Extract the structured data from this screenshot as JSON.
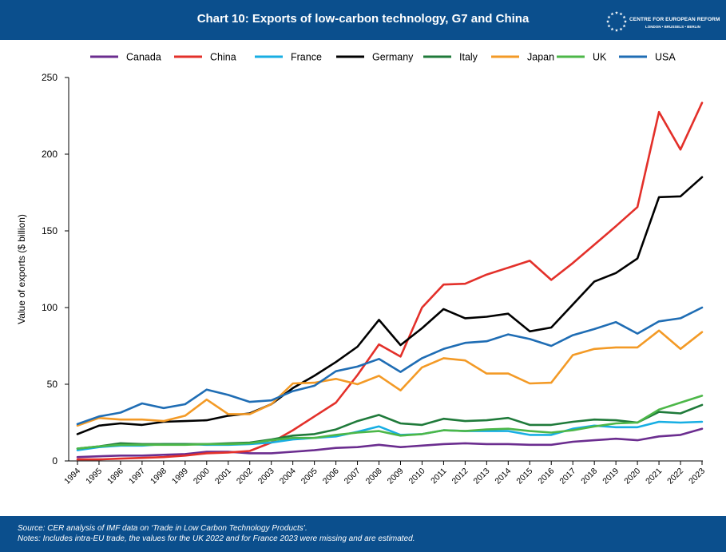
{
  "header": {
    "title": "Chart 10: Exports of low-carbon technology, G7 and China",
    "logo_name": "CENTRE FOR EUROPEAN REFORM",
    "logo_cities": "LONDON • BRUSSELS • BERLIN"
  },
  "footer": {
    "source": "Source: CER analysis of IMF data on ‘Trade in Low Carbon Technology Products’.",
    "notes": "Notes: Includes intra-EU trade, the values for the UK 2022 and for France 2023 were missing and are estimated."
  },
  "chart_data": {
    "type": "line",
    "title": "Chart 10: Exports of low-carbon technology, G7 and China",
    "xlabel": "",
    "ylabel": "Value of exports ($ billion)",
    "ylim": [
      0,
      250
    ],
    "yticks": [
      0,
      50,
      100,
      150,
      200,
      250
    ],
    "grid": false,
    "legend_position": "top",
    "x": [
      "1994",
      "1995",
      "1996",
      "1997",
      "1998",
      "1999",
      "2000",
      "2001",
      "2002",
      "2003",
      "2004",
      "2005",
      "2006",
      "2007",
      "2008",
      "2009",
      "2010",
      "2011",
      "2012",
      "2013",
      "2014",
      "2015",
      "2016",
      "2017",
      "2018",
      "2019",
      "2020",
      "2021",
      "2022",
      "2023"
    ],
    "series": [
      {
        "name": "Canada",
        "color": "#6b2d8f",
        "values": [
          2.5,
          3,
          3.5,
          3.5,
          4,
          4.5,
          6,
          6,
          5,
          5,
          6,
          7,
          8.5,
          9,
          10.5,
          9,
          10,
          11,
          11.5,
          11,
          11,
          10.5,
          10.5,
          12.5,
          13.5,
          14.5,
          13.5,
          16,
          17,
          21
        ]
      },
      {
        "name": "China",
        "color": "#e3302a",
        "values": [
          1,
          1,
          1.5,
          2,
          2.5,
          3.5,
          5,
          5.5,
          6.5,
          12,
          20,
          29,
          38,
          56,
          76,
          68,
          100,
          115,
          115.5,
          121.5,
          126,
          130.5,
          118,
          129,
          141,
          153,
          165.5,
          227.5,
          203,
          233.5
        ]
      },
      {
        "name": "France",
        "color": "#17aee3",
        "values": [
          7,
          9,
          10,
          10,
          11,
          11,
          10.5,
          10.5,
          11,
          12,
          14,
          15,
          16,
          19,
          22.5,
          17,
          17.5,
          20,
          19.5,
          19.5,
          19.5,
          17,
          17,
          21,
          23,
          22,
          22,
          25.5,
          25,
          25.5
        ]
      },
      {
        "name": "Germany",
        "color": "#000000",
        "values": [
          17.5,
          23,
          24.5,
          23.5,
          25.5,
          26,
          26.5,
          29.5,
          31,
          37,
          47.5,
          55.5,
          64.5,
          74.5,
          92,
          75.5,
          86.5,
          99,
          93,
          94,
          96,
          84.5,
          87,
          102,
          117,
          122.5,
          132,
          172,
          172.5,
          185
        ]
      },
      {
        "name": "Italy",
        "color": "#1f7a3a",
        "values": [
          8,
          9.5,
          11.5,
          11,
          11,
          11,
          11,
          11.5,
          12,
          14,
          16.5,
          17.5,
          20.5,
          26,
          30,
          24.5,
          23.5,
          27.5,
          26,
          26.5,
          28,
          23.5,
          23.5,
          25.5,
          27,
          26.5,
          25,
          32,
          31,
          36.5
        ]
      },
      {
        "name": "Japan",
        "color": "#f39a26",
        "values": [
          23,
          28,
          27,
          27,
          26,
          29.5,
          40,
          30.5,
          30.5,
          37,
          50.5,
          51,
          53.5,
          50,
          55.5,
          46,
          61,
          67,
          65.5,
          57,
          57,
          50.5,
          51,
          69,
          73,
          74,
          74,
          85,
          73,
          84
        ]
      },
      {
        "name": "UK",
        "color": "#4cb748",
        "values": [
          8,
          9.5,
          10.5,
          10.5,
          10.5,
          10.5,
          11,
          11,
          11.5,
          13.5,
          15,
          15,
          17,
          18.5,
          19.5,
          16.5,
          17.5,
          20,
          19.5,
          20.5,
          21,
          19.5,
          18.5,
          20,
          22.5,
          24.5,
          25,
          33.5,
          38,
          42.5
        ]
      },
      {
        "name": "USA",
        "color": "#1f6db4",
        "values": [
          24,
          29,
          31.5,
          37.5,
          34.5,
          37,
          46.5,
          43,
          38.5,
          39.5,
          45.5,
          49,
          58.5,
          61.5,
          66.5,
          58,
          67,
          73,
          77,
          78,
          82.5,
          79.5,
          75,
          82,
          86,
          90.5,
          83,
          91,
          93,
          100
        ]
      }
    ]
  }
}
